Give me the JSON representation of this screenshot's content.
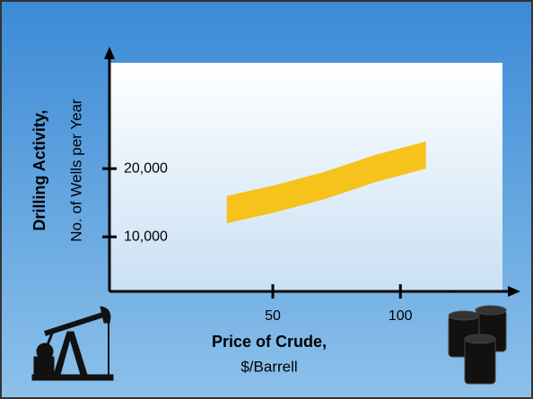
{
  "chart_data": {
    "type": "band",
    "y_title": "Drilling Activity,",
    "y_subtitle": "No. of Wells per Year",
    "x_title": "Price of Crude,",
    "x_subtitle": "$/Barrell",
    "x": [
      32,
      50,
      70,
      90,
      110
    ],
    "low": [
      12000,
      13500,
      15500,
      18000,
      20000
    ],
    "high": [
      16000,
      17500,
      19500,
      22000,
      24000
    ],
    "color": "#f6c21c",
    "xlim": [
      -14,
      140
    ],
    "xticks": [
      50,
      100
    ],
    "ylim": [
      2000,
      35000
    ],
    "yticks": [
      {
        "value": 10000,
        "label": "10,000"
      },
      {
        "value": 20000,
        "label": "20,000"
      }
    ]
  }
}
